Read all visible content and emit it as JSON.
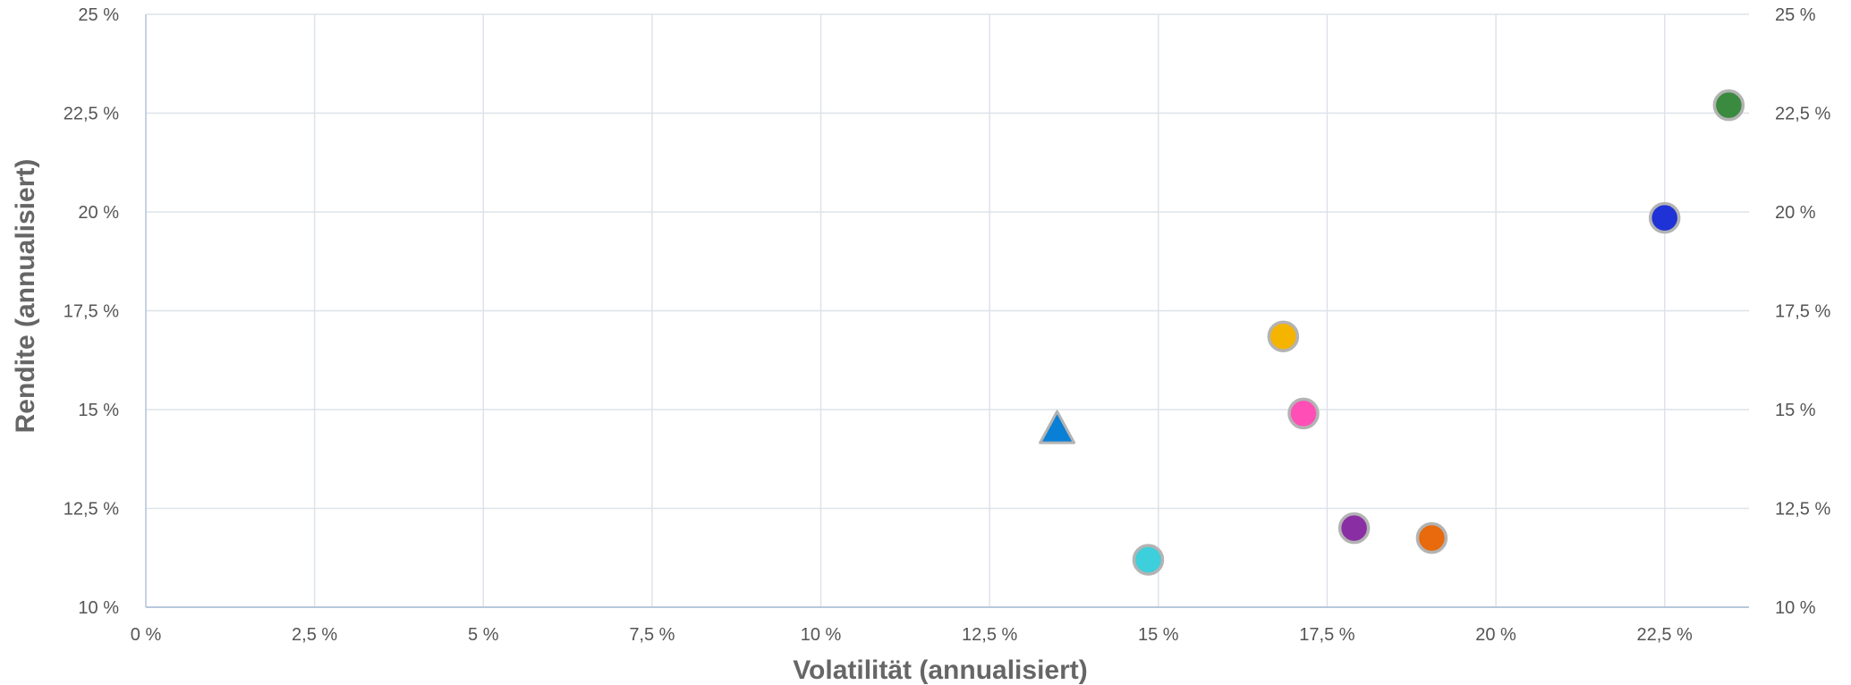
{
  "chart_data": {
    "type": "scatter",
    "title": "",
    "xlabel": "Volatilität (annualisiert)",
    "ylabel": "Rendite (annualisiert)",
    "xlim": [
      0,
      23.75
    ],
    "ylim": [
      10,
      25
    ],
    "x_ticks": [
      "0 %",
      "2,5 %",
      "5 %",
      "7,5 %",
      "10 %",
      "12,5 %",
      "15 %",
      "17,5 %",
      "20 %",
      "22,5 %"
    ],
    "y_ticks": [
      "10 %",
      "12,5 %",
      "15 %",
      "17,5 %",
      "20 %",
      "22,5 %",
      "25 %"
    ],
    "grid": true,
    "secondary_y_axis": true,
    "points": [
      {
        "x": 13.5,
        "y": 14.5,
        "marker": "triangle",
        "color": "#0a7fd6"
      },
      {
        "x": 14.85,
        "y": 11.2,
        "marker": "circle",
        "color": "#3dcfdb"
      },
      {
        "x": 16.85,
        "y": 16.85,
        "marker": "circle",
        "color": "#f5b400"
      },
      {
        "x": 17.15,
        "y": 14.9,
        "marker": "circle",
        "color": "#ff4fb6"
      },
      {
        "x": 17.9,
        "y": 12.0,
        "marker": "circle",
        "color": "#8a2fa3"
      },
      {
        "x": 19.05,
        "y": 11.75,
        "marker": "circle",
        "color": "#e86a0c"
      },
      {
        "x": 22.5,
        "y": 19.85,
        "marker": "circle",
        "color": "#1f32d6"
      },
      {
        "x": 23.45,
        "y": 22.7,
        "marker": "circle",
        "color": "#3a8a3f"
      }
    ]
  }
}
